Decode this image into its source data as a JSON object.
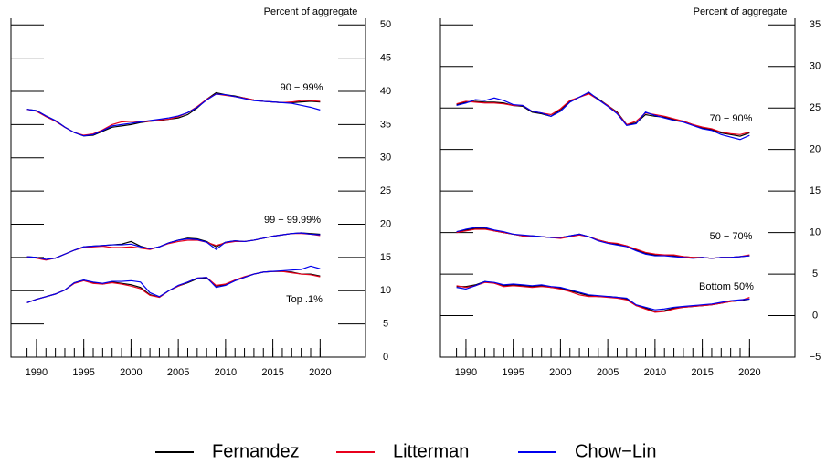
{
  "chart_data": [
    {
      "type": "line",
      "ylabel": "Percent of aggregate",
      "x": [
        1989,
        1990,
        1991,
        1992,
        1993,
        1994,
        1995,
        1996,
        1997,
        1998,
        1999,
        2000,
        2001,
        2002,
        2003,
        2004,
        2005,
        2006,
        2007,
        2008,
        2009,
        2010,
        2011,
        2012,
        2013,
        2014,
        2015,
        2016,
        2017,
        2018,
        2019,
        2020
      ],
      "xlim": [
        1987.3,
        2024.8
      ],
      "xticks": [
        1990,
        1995,
        2000,
        2005,
        2010,
        2015,
        2020
      ],
      "xminorticks": [
        1989,
        1990,
        1991,
        1992,
        1993,
        1994,
        1995,
        1996,
        1997,
        1998,
        1999,
        2000,
        2001,
        2002,
        2003,
        2004,
        2005,
        2006,
        2007,
        2008,
        2009,
        2010,
        2011,
        2012,
        2013,
        2014,
        2015,
        2016,
        2017,
        2018,
        2019,
        2020
      ],
      "ylim": [
        0,
        51
      ],
      "yticks": [
        0,
        5,
        10,
        15,
        20,
        25,
        30,
        35,
        40,
        45,
        50
      ],
      "groups": [
        {
          "label": "90 − 99%",
          "series": [
            {
              "name": "Fernandez",
              "color": "#000000",
              "values": [
                37.3,
                37.1,
                36.3,
                35.6,
                34.6,
                33.8,
                33.3,
                33.4,
                34.0,
                34.6,
                34.8,
                35.0,
                35.3,
                35.5,
                35.6,
                35.8,
                36.0,
                36.5,
                37.5,
                38.8,
                39.8,
                39.5,
                39.3,
                39.0,
                38.7,
                38.5,
                38.4,
                38.3,
                38.3,
                38.4,
                38.5,
                38.4
              ]
            },
            {
              "name": "Litterman",
              "color": "#e8001c",
              "values": [
                37.3,
                37.0,
                36.2,
                35.5,
                34.6,
                33.8,
                33.4,
                33.6,
                34.2,
                35.0,
                35.4,
                35.5,
                35.4,
                35.5,
                35.7,
                35.8,
                36.2,
                36.8,
                37.7,
                38.8,
                39.6,
                39.4,
                39.2,
                39.0,
                38.7,
                38.5,
                38.4,
                38.3,
                38.4,
                38.6,
                38.6,
                38.5
              ]
            },
            {
              "name": "Chow−Lin",
              "color": "#0000ee",
              "values": [
                37.3,
                37.1,
                36.3,
                35.6,
                34.6,
                33.8,
                33.3,
                33.5,
                34.1,
                34.8,
                35.0,
                35.2,
                35.4,
                35.6,
                35.8,
                36.0,
                36.3,
                36.8,
                37.6,
                38.7,
                39.6,
                39.5,
                39.2,
                38.9,
                38.6,
                38.5,
                38.4,
                38.3,
                38.2,
                37.9,
                37.6,
                37.2
              ]
            }
          ]
        },
        {
          "label": "99 − 99.99%",
          "series": [
            {
              "name": "Fernandez",
              "color": "#000000",
              "values": [
                15.1,
                15.0,
                14.7,
                14.9,
                15.5,
                16.1,
                16.6,
                16.7,
                16.8,
                16.9,
                17.0,
                17.4,
                16.7,
                16.3,
                16.6,
                17.2,
                17.6,
                17.9,
                17.8,
                17.4,
                16.6,
                17.3,
                17.5,
                17.4,
                17.6,
                17.9,
                18.2,
                18.4,
                18.6,
                18.7,
                18.6,
                18.5
              ]
            },
            {
              "name": "Litterman",
              "color": "#e8001c",
              "values": [
                15.1,
                14.9,
                14.6,
                14.9,
                15.5,
                16.1,
                16.5,
                16.6,
                16.7,
                16.5,
                16.5,
                16.6,
                16.4,
                16.2,
                16.6,
                17.1,
                17.4,
                17.6,
                17.6,
                17.3,
                16.8,
                17.2,
                17.4,
                17.4,
                17.6,
                17.9,
                18.2,
                18.4,
                18.6,
                18.6,
                18.5,
                18.3
              ]
            },
            {
              "name": "Chow−Lin",
              "color": "#0000ee",
              "values": [
                15.1,
                15.0,
                14.7,
                14.9,
                15.5,
                16.1,
                16.6,
                16.7,
                16.8,
                16.9,
                16.9,
                17.0,
                16.6,
                16.3,
                16.6,
                17.2,
                17.6,
                17.8,
                17.7,
                17.3,
                16.2,
                17.3,
                17.5,
                17.4,
                17.6,
                17.9,
                18.2,
                18.4,
                18.6,
                18.7,
                18.5,
                18.4
              ]
            }
          ]
        },
        {
          "label": "Top .1%",
          "series": [
            {
              "name": "Fernandez",
              "color": "#000000",
              "values": [
                8.2,
                8.7,
                9.1,
                9.5,
                10.1,
                11.2,
                11.6,
                11.2,
                11.0,
                11.3,
                11.1,
                10.9,
                10.5,
                9.4,
                9.0,
                10.0,
                10.7,
                11.2,
                11.8,
                11.9,
                10.7,
                10.9,
                11.5,
                12.0,
                12.5,
                12.8,
                12.9,
                12.9,
                12.8,
                12.5,
                12.5,
                12.2
              ]
            },
            {
              "name": "Litterman",
              "color": "#e8001c",
              "values": [
                8.2,
                8.7,
                9.1,
                9.5,
                10.1,
                11.1,
                11.5,
                11.1,
                11.0,
                11.2,
                11.0,
                10.7,
                10.3,
                9.3,
                9.0,
                10.0,
                10.7,
                11.3,
                11.9,
                12.0,
                10.8,
                11.0,
                11.6,
                12.1,
                12.5,
                12.8,
                12.9,
                12.9,
                12.7,
                12.5,
                12.4,
                12.1
              ]
            },
            {
              "name": "Chow−Lin",
              "color": "#0000ee",
              "values": [
                8.2,
                8.7,
                9.1,
                9.5,
                10.1,
                11.2,
                11.6,
                11.3,
                11.1,
                11.4,
                11.4,
                11.5,
                11.3,
                9.7,
                9.1,
                10.0,
                10.8,
                11.3,
                11.9,
                12.0,
                10.5,
                10.8,
                11.5,
                12.0,
                12.5,
                12.8,
                12.9,
                13.0,
                13.1,
                13.2,
                13.7,
                13.3
              ]
            }
          ]
        }
      ]
    },
    {
      "type": "line",
      "ylabel": "Percent of aggregate",
      "x": [
        1989,
        1990,
        1991,
        1992,
        1993,
        1994,
        1995,
        1996,
        1997,
        1998,
        1999,
        2000,
        2001,
        2002,
        2003,
        2004,
        2005,
        2006,
        2007,
        2008,
        2009,
        2010,
        2011,
        2012,
        2013,
        2014,
        2015,
        2016,
        2017,
        2018,
        2019,
        2020
      ],
      "xlim": [
        1987.3,
        2024.8
      ],
      "xticks": [
        1990,
        1995,
        2000,
        2005,
        2010,
        2015,
        2020
      ],
      "xminorticks": [
        1989,
        1990,
        1991,
        1992,
        1993,
        1994,
        1995,
        1996,
        1997,
        1998,
        1999,
        2000,
        2001,
        2002,
        2003,
        2004,
        2005,
        2006,
        2007,
        2008,
        2009,
        2010,
        2011,
        2012,
        2013,
        2014,
        2015,
        2016,
        2017,
        2018,
        2019,
        2020
      ],
      "ylim": [
        -5,
        35.8
      ],
      "yticks": [
        {
          "value": -5,
          "label": "−5"
        },
        0,
        5,
        10,
        15,
        20,
        25,
        30,
        35
      ],
      "groups": [
        {
          "label": "70 − 90%",
          "series": [
            {
              "name": "Fernandez",
              "color": "#000000",
              "values": [
                25.4,
                25.7,
                25.8,
                25.7,
                25.7,
                25.6,
                25.3,
                25.2,
                24.5,
                24.3,
                24.0,
                24.8,
                25.8,
                26.3,
                26.8,
                26.1,
                25.3,
                24.5,
                23.0,
                23.2,
                24.2,
                24.0,
                23.9,
                23.6,
                23.4,
                23.0,
                22.6,
                22.4,
                22.0,
                21.8,
                21.6,
                22.0
              ]
            },
            {
              "name": "Litterman",
              "color": "#e8001c",
              "values": [
                25.5,
                25.8,
                25.7,
                25.6,
                25.6,
                25.5,
                25.3,
                25.3,
                24.6,
                24.4,
                24.2,
                24.9,
                25.9,
                26.3,
                26.7,
                26.0,
                25.3,
                24.4,
                23.0,
                23.4,
                24.4,
                24.2,
                24.0,
                23.7,
                23.4,
                23.0,
                22.7,
                22.5,
                22.1,
                21.9,
                21.8,
                22.1
              ]
            },
            {
              "name": "Chow−Lin",
              "color": "#0000ee",
              "values": [
                25.3,
                25.6,
                26.0,
                25.9,
                26.2,
                25.9,
                25.4,
                25.3,
                24.6,
                24.4,
                24.0,
                24.6,
                25.7,
                26.3,
                26.9,
                26.0,
                25.2,
                24.3,
                22.9,
                23.1,
                24.5,
                24.1,
                23.8,
                23.5,
                23.3,
                22.9,
                22.5,
                22.3,
                21.8,
                21.5,
                21.2,
                21.7
              ]
            }
          ]
        },
        {
          "label": "50 − 70%",
          "series": [
            {
              "name": "Fernandez",
              "color": "#000000",
              "values": [
                10.1,
                10.3,
                10.5,
                10.5,
                10.2,
                10.0,
                9.8,
                9.6,
                9.6,
                9.5,
                9.4,
                9.4,
                9.6,
                9.8,
                9.5,
                9.1,
                8.8,
                8.6,
                8.4,
                7.9,
                7.5,
                7.3,
                7.3,
                7.2,
                7.1,
                7.0,
                7.0,
                6.9,
                7.0,
                7.0,
                7.1,
                7.2
              ]
            },
            {
              "name": "Litterman",
              "color": "#e8001c",
              "values": [
                10.0,
                10.2,
                10.4,
                10.4,
                10.2,
                10.0,
                9.8,
                9.6,
                9.5,
                9.5,
                9.4,
                9.3,
                9.5,
                9.7,
                9.5,
                9.1,
                8.8,
                8.7,
                8.4,
                8.0,
                7.6,
                7.4,
                7.3,
                7.3,
                7.1,
                7.0,
                7.0,
                6.9,
                7.0,
                7.0,
                7.1,
                7.3
              ]
            },
            {
              "name": "Chow−Lin",
              "color": "#0000ee",
              "values": [
                10.1,
                10.4,
                10.6,
                10.6,
                10.3,
                10.1,
                9.8,
                9.7,
                9.6,
                9.5,
                9.4,
                9.4,
                9.6,
                9.8,
                9.5,
                9.0,
                8.7,
                8.5,
                8.3,
                7.8,
                7.4,
                7.2,
                7.2,
                7.1,
                7.0,
                6.9,
                7.0,
                6.9,
                7.0,
                7.0,
                7.1,
                7.2
              ]
            }
          ]
        },
        {
          "label": "Bottom 50%",
          "series": [
            {
              "name": "Fernandez",
              "color": "#000000",
              "values": [
                3.5,
                3.5,
                3.7,
                4.1,
                3.9,
                3.6,
                3.7,
                3.6,
                3.5,
                3.6,
                3.4,
                3.3,
                3.0,
                2.7,
                2.4,
                2.3,
                2.3,
                2.2,
                2.0,
                1.2,
                0.9,
                0.5,
                0.6,
                0.9,
                1.0,
                1.1,
                1.2,
                1.3,
                1.5,
                1.7,
                1.8,
                2.0
              ]
            },
            {
              "name": "Litterman",
              "color": "#e8001c",
              "values": [
                3.6,
                3.4,
                3.6,
                4.0,
                3.9,
                3.5,
                3.6,
                3.5,
                3.4,
                3.5,
                3.4,
                3.2,
                2.9,
                2.5,
                2.3,
                2.3,
                2.2,
                2.1,
                1.9,
                1.2,
                0.8,
                0.4,
                0.5,
                0.8,
                1.0,
                1.1,
                1.2,
                1.3,
                1.5,
                1.7,
                1.8,
                2.2
              ]
            },
            {
              "name": "Chow−Lin",
              "color": "#0000ee",
              "values": [
                3.4,
                3.2,
                3.6,
                4.1,
                4.0,
                3.7,
                3.8,
                3.7,
                3.6,
                3.7,
                3.5,
                3.4,
                3.1,
                2.8,
                2.5,
                2.4,
                2.3,
                2.2,
                2.1,
                1.3,
                1.0,
                0.7,
                0.8,
                1.0,
                1.1,
                1.2,
                1.3,
                1.4,
                1.6,
                1.8,
                1.9,
                2.0
              ]
            }
          ]
        }
      ]
    }
  ]
}
